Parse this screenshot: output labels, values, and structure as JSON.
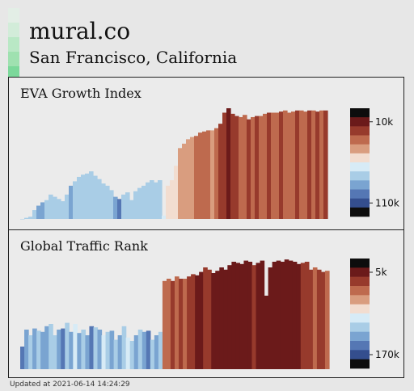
{
  "header": {
    "company": "mural.co",
    "location": "San Francisco, California",
    "logo_colors": [
      "#e3eee6",
      "#d2ecd9",
      "#b9e8c5",
      "#9fe1b0",
      "#7bd89a"
    ]
  },
  "footer": {
    "updated": "Updated at 2021-06-14 14:24:29"
  },
  "colorbar_palette": [
    "#0d0d0d",
    "#6b1a1a",
    "#973a2c",
    "#be6a4e",
    "#d99d7f",
    "#f2ddd0",
    "#d7ebf6",
    "#a9cde6",
    "#7aa4d1",
    "#5577b4",
    "#344e8e",
    "#0d0d0d"
  ],
  "chart_data": [
    {
      "type": "area",
      "title": "EVA Growth Index",
      "ylabel": "",
      "tick_labels": [
        "10k",
        "110k"
      ],
      "x_count": 76,
      "ylim": [
        0,
        100
      ],
      "values": [
        0,
        1,
        2,
        8,
        12,
        15,
        17,
        22,
        20,
        18,
        16,
        22,
        30,
        34,
        38,
        40,
        41,
        43,
        39,
        36,
        32,
        30,
        26,
        20,
        18,
        22,
        24,
        17,
        25,
        28,
        30,
        33,
        35,
        33,
        35,
        3,
        30,
        35,
        48,
        64,
        68,
        72,
        74,
        75,
        78,
        79,
        80,
        80,
        82,
        86,
        96,
        100,
        95,
        93,
        92,
        94,
        90,
        92,
        93,
        93,
        95,
        96,
        96,
        96,
        97,
        98,
        96,
        97,
        98,
        98,
        97,
        98,
        98,
        97,
        98,
        98
      ],
      "color_levels": [
        7,
        7,
        7,
        7,
        8,
        8,
        7,
        7,
        7,
        7,
        7,
        7,
        8,
        7,
        7,
        7,
        7,
        7,
        7,
        7,
        7,
        7,
        7,
        8,
        9,
        7,
        7,
        7,
        7,
        7,
        7,
        7,
        7,
        7,
        7,
        6,
        5,
        5,
        5,
        4,
        4,
        4,
        4,
        3,
        3,
        3,
        3,
        4,
        3,
        2,
        2,
        1,
        2,
        2,
        3,
        3,
        2,
        3,
        2,
        3,
        3,
        2,
        3,
        3,
        2,
        3,
        3,
        3,
        2,
        3,
        3,
        2,
        3,
        2,
        3,
        2
      ]
    },
    {
      "type": "area",
      "title": "Global Traffic Rank",
      "ylabel": "",
      "tick_labels": [
        "5k",
        "170k"
      ],
      "x_count": 76,
      "ylim": [
        0,
        100
      ],
      "values": [
        20,
        35,
        30,
        36,
        34,
        33,
        38,
        40,
        30,
        35,
        36,
        41,
        33,
        40,
        32,
        35,
        30,
        38,
        37,
        35,
        30,
        33,
        34,
        26,
        30,
        38,
        28,
        25,
        30,
        35,
        33,
        34,
        26,
        30,
        33,
        78,
        80,
        78,
        82,
        80,
        80,
        82,
        84,
        83,
        86,
        90,
        88,
        85,
        87,
        90,
        88,
        92,
        95,
        94,
        93,
        96,
        95,
        92,
        94,
        96,
        65,
        90,
        95,
        96,
        95,
        97,
        96,
        95,
        93,
        94,
        95,
        88,
        90,
        88,
        86,
        87
      ],
      "color_levels": [
        9,
        8,
        7,
        8,
        7,
        8,
        8,
        7,
        7,
        8,
        9,
        7,
        8,
        6,
        8,
        7,
        8,
        9,
        7,
        8,
        6,
        7,
        8,
        7,
        8,
        7,
        6,
        7,
        8,
        7,
        8,
        9,
        7,
        8,
        7,
        3,
        3,
        2,
        3,
        2,
        3,
        2,
        2,
        1,
        1,
        2,
        2,
        1,
        1,
        1,
        1,
        1,
        1,
        1,
        1,
        1,
        1,
        2,
        1,
        1,
        1,
        1,
        1,
        1,
        1,
        1,
        1,
        1,
        1,
        2,
        2,
        2,
        3,
        2,
        2,
        3
      ]
    }
  ]
}
